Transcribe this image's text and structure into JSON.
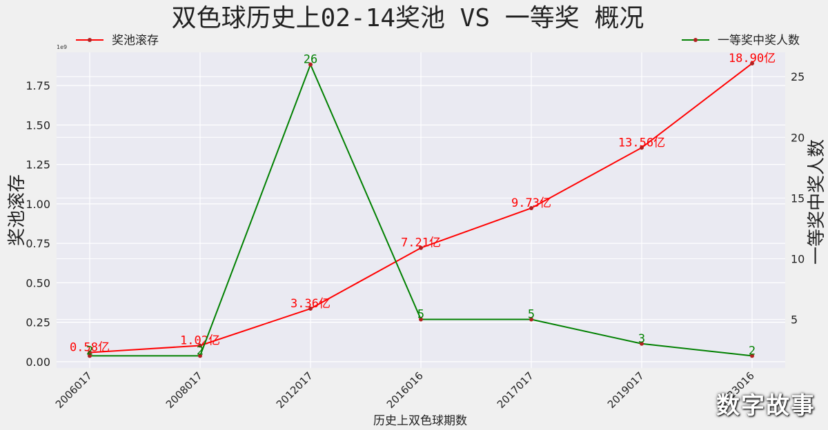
{
  "chart_data": {
    "type": "line",
    "title": "双色球历史上02-14奖池 VS 一等奖 概况",
    "xlabel": "历史上双色球期数",
    "categories": [
      "2006017",
      "2008017",
      "2012017",
      "2016016",
      "2017017",
      "2019017",
      "2023016"
    ],
    "y_left": {
      "label": "奖池滚存",
      "offset_text": "1e9",
      "ylim": [
        -0.04,
        1.96
      ],
      "ticks": [
        0.0,
        0.25,
        0.5,
        0.75,
        1.0,
        1.25,
        1.5,
        1.75
      ],
      "tick_labels": [
        "0.00",
        "0.25",
        "0.50",
        "0.75",
        "1.00",
        "1.25",
        "1.50",
        "1.75"
      ]
    },
    "y_right": {
      "label": "一等奖中奖人数",
      "ylim": [
        1.0,
        27.0
      ],
      "ticks": [
        5,
        10,
        15,
        20,
        25
      ],
      "tick_labels": [
        "5",
        "10",
        "15",
        "20",
        "25"
      ]
    },
    "grid": true,
    "series": [
      {
        "name": "奖池滚存",
        "axis": "left",
        "color": "#ff0000",
        "values": [
          0.058,
          0.102,
          0.336,
          0.721,
          0.973,
          1.356,
          1.89
        ],
        "labels": [
          "0.58亿",
          "1.02亿",
          "3.36亿",
          "7.21亿",
          "9.73亿",
          "13.56亿",
          "18.90亿"
        ],
        "legend_position": "top-left"
      },
      {
        "name": "一等奖中奖人数",
        "axis": "right",
        "color": "#008000",
        "values": [
          2,
          2,
          26,
          5,
          5,
          3,
          2
        ],
        "labels": [
          "2",
          "2",
          "26",
          "5",
          "5",
          "3",
          "2"
        ],
        "legend_position": "top-right"
      }
    ]
  },
  "watermark": "数字故事"
}
